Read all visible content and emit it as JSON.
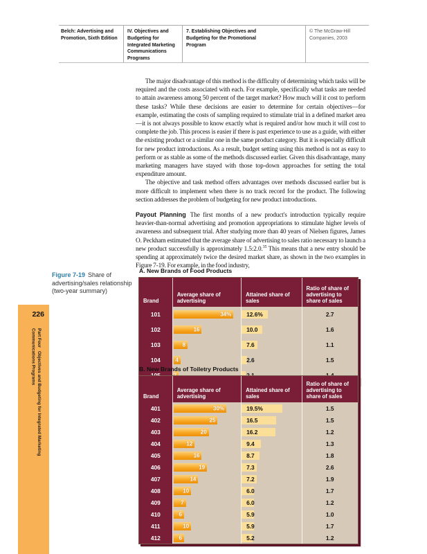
{
  "header": {
    "book": "Belch: Advertising and Promotion, Sixth Edition",
    "part": "IV. Objectives and Budgeting for Integrated Marketing Communications Programs",
    "chapter": "7. Establishing Objectives and Budgeting for the Promotional Program",
    "copyright": "© The McGraw-Hill Companies, 2003"
  },
  "body": {
    "para1": "The major disadvantage of this method is the difficulty of determining which tasks will be required and the costs associated with each. For example, specifically what tasks are needed to attain awareness among 50 percent of the target market? How much will it cost to perform these tasks? While these decisions are easier to determine for certain objectives—for example, estimating the costs of sampling required to stimulate trial in a defined market area—it is not always possible to know exactly what is required and/or how much it will cost to complete the job. This process is easier if there is past experience to use as a guide, with either the existing product or a similar one in the same product category. But it is especially difficult for new product introductions. As a result, budget setting using this method is not as easy to perform or as stable as some of the methods discussed earlier. Given this disadvantage, many marketing managers have stayed with those top-down approaches for setting the total expenditure amount.",
    "para2": "The objective and task method offers advantages over methods discussed earlier but is more difficult to implement when there is no track record for the product. The following section addresses the problem of budgeting for new product introductions.",
    "payout": {
      "heading": "Payout Planning",
      "text_before_sup": "The first months of a new product's introduction typically require heavier-than-normal advertising and promotion appropriations to stimulate higher levels of awareness and subsequent trial. After studying more than 40 years of Nielsen figures, James O. Peckham estimated that the average share of advertising to sales ratio necessary to launch a new product successfully is approximately 1.5:2.0.",
      "footnote_ref": "35",
      "text_after_sup": " This means that a new entry should be spending at approximately twice the desired market share, as shown in the two examples in Figure 7-19. For example, in the food industry,"
    }
  },
  "figure_caption": {
    "label": "Figure 7-19",
    "text": "Share of advertising/sales relationship (two-year summary)"
  },
  "sidebar": {
    "page_number": "226",
    "part_label": "Part Four",
    "part_title": "Objectives and Budgeting for Integrated Marketing Communications Programs"
  },
  "tables": [
    {
      "title": "A. New Brands of Food Products",
      "columns": [
        "Brand",
        "Average share of advertising",
        "Attained share of sales",
        "Ratio of share of advertising to share of sales"
      ],
      "rows": [
        {
          "brand": "101",
          "adv": 34,
          "adv_label": "34%",
          "sales": 12.6,
          "sales_label": "12.6%",
          "ratio": "2.7"
        },
        {
          "brand": "102",
          "adv": 16,
          "adv_label": "16",
          "sales": 10.0,
          "sales_label": "10.0",
          "ratio": "1.6"
        },
        {
          "brand": "103",
          "adv": 8,
          "adv_label": "8",
          "sales": 7.6,
          "sales_label": "7.6",
          "ratio": "1.1"
        },
        {
          "brand": "104",
          "adv": 4,
          "adv_label": "4",
          "sales": 2.6,
          "sales_label": "2.6",
          "ratio": "1.5"
        },
        {
          "brand": "105",
          "adv": 3,
          "adv_label": "3",
          "sales": 2.1,
          "sales_label": "2.1",
          "ratio": "1.4"
        }
      ]
    },
    {
      "title": "B. New Brands of Toiletry Products",
      "columns": [
        "Brand",
        "Average share of advertising",
        "Attained share of sales",
        "Ratio of share of advertising to share of sales"
      ],
      "rows": [
        {
          "brand": "401",
          "adv": 30,
          "adv_label": "30%",
          "sales": 19.5,
          "sales_label": "19.5%",
          "ratio": "1.5"
        },
        {
          "brand": "402",
          "adv": 25,
          "adv_label": "25",
          "sales": 16.5,
          "sales_label": "16.5",
          "ratio": "1.5"
        },
        {
          "brand": "403",
          "adv": 20,
          "adv_label": "20",
          "sales": 16.2,
          "sales_label": "16.2",
          "ratio": "1.2"
        },
        {
          "brand": "404",
          "adv": 12,
          "adv_label": "12",
          "sales": 9.4,
          "sales_label": "9.4",
          "ratio": "1.3"
        },
        {
          "brand": "405",
          "adv": 16,
          "adv_label": "16",
          "sales": 8.7,
          "sales_label": "8.7",
          "ratio": "1.8"
        },
        {
          "brand": "406",
          "adv": 19,
          "adv_label": "19",
          "sales": 7.3,
          "sales_label": "7.3",
          "ratio": "2.6"
        },
        {
          "brand": "407",
          "adv": 14,
          "adv_label": "14",
          "sales": 7.2,
          "sales_label": "7.2",
          "ratio": "1.9"
        },
        {
          "brand": "408",
          "adv": 10,
          "adv_label": "10",
          "sales": 6.0,
          "sales_label": "6.0",
          "ratio": "1.7"
        },
        {
          "brand": "409",
          "adv": 7,
          "adv_label": "7",
          "sales": 6.0,
          "sales_label": "6.0",
          "ratio": "1.2"
        },
        {
          "brand": "410",
          "adv": 6,
          "adv_label": "6",
          "sales": 5.9,
          "sales_label": "5.9",
          "ratio": "1.0"
        },
        {
          "brand": "411",
          "adv": 10,
          "adv_label": "10",
          "sales": 5.9,
          "sales_label": "5.9",
          "ratio": "1.7"
        },
        {
          "brand": "412",
          "adv": 6,
          "adv_label": "6",
          "sales": 5.2,
          "sales_label": "5.2",
          "ratio": "1.2"
        }
      ]
    }
  ],
  "colors": {
    "maroon": "#7a1e37",
    "beige": "#d6c9b7",
    "pale_yellow": "#fbde97",
    "bar_orange": "#f7a825",
    "sidebar_orange": "#f8b154",
    "caption_blue": "#2e7ea6"
  }
}
